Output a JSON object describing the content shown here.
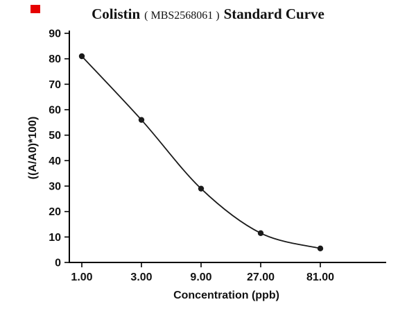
{
  "page": {
    "background": "#ffffff",
    "red_mark_color": "#e60000"
  },
  "chart_data": {
    "type": "line",
    "title_parts": {
      "prefix": "Colistin",
      "code": "( MBS2568061 )",
      "suffix": "Standard Curve"
    },
    "categories": [
      "1.00",
      "3.00",
      "9.00",
      "27.00",
      "81.00"
    ],
    "x_values": [
      1,
      3,
      9,
      27,
      81
    ],
    "x_scale": "log-category",
    "values": [
      81,
      56,
      29,
      11.5,
      5.5
    ],
    "xlabel": "Concentration (ppb)",
    "ylabel": "((A/A0)*100)",
    "ylim": [
      0,
      90
    ],
    "yticks": [
      0,
      10,
      20,
      30,
      40,
      50,
      60,
      70,
      80,
      90
    ],
    "grid": false,
    "legend": "none",
    "line_color": "#1a1a1a",
    "axis_color": "#000000",
    "marker": "circle",
    "marker_color": "#1a1a1a"
  }
}
